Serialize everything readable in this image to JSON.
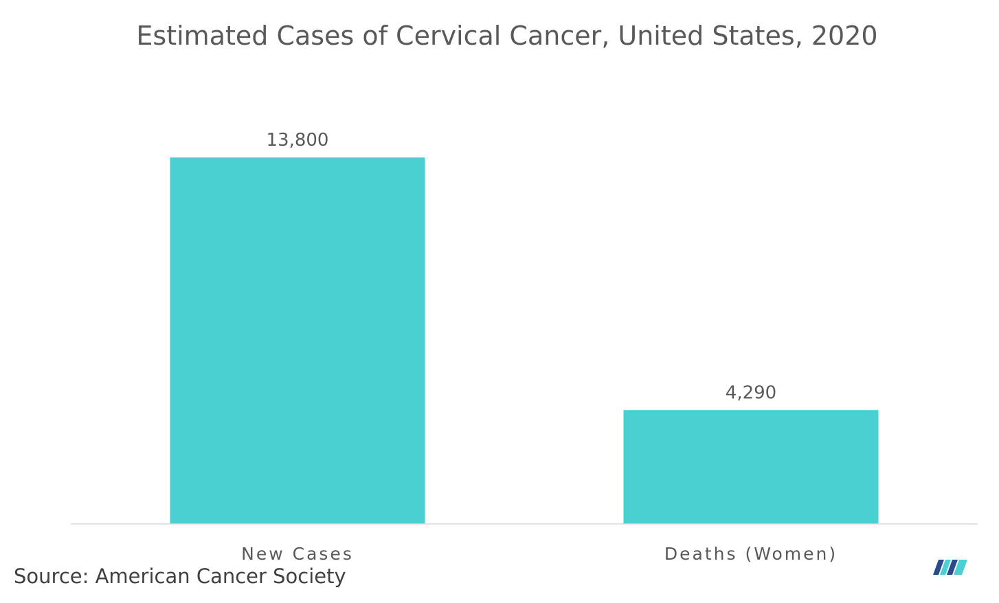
{
  "chart_data": {
    "type": "bar",
    "title": "Estimated Cases of Cervical Cancer, United States, 2020",
    "categories": [
      "New Cases",
      "Deaths (Women)"
    ],
    "values": [
      13800,
      4290
    ],
    "value_labels": [
      "13,800",
      "4,290"
    ],
    "xlabel": "",
    "ylabel": "",
    "ylim": [
      0,
      16000
    ],
    "grid": false,
    "legend": "none",
    "bar_color": "#4ACFD2",
    "axis_color": "#D9D9D9"
  },
  "source": "Source: American Cancer Society",
  "logo": {
    "icon": "mordor-intelligence-logo-icon",
    "colors": [
      "#2A4A8C",
      "#4ACFD2"
    ]
  }
}
